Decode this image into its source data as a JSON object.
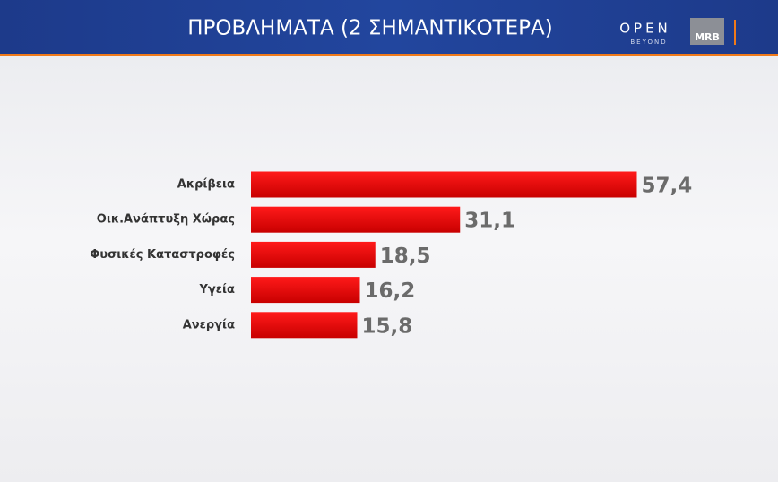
{
  "chart_data": {
    "type": "bar",
    "orientation": "horizontal",
    "title": "ΠΡΟΒΛΗΜΑΤΑ (2 ΣΗΜΑΝΤΙΚΟΤΕΡΑ)",
    "categories": [
      "Ακρίβεια",
      "Οικ.Ανάπτυξη Χώρας",
      "Φυσικές Καταστροφές",
      "Υγεία",
      "Ανεργία"
    ],
    "values": [
      57.4,
      31.1,
      18.5,
      16.2,
      15.8
    ],
    "value_labels": [
      "57,4",
      "31,1",
      "18,5",
      "16,2",
      "15,8"
    ],
    "color": "#e30613"
  },
  "logos": {
    "channel": "OPEN",
    "channel_tagline": "BEYOND",
    "pollster": "MRB"
  }
}
